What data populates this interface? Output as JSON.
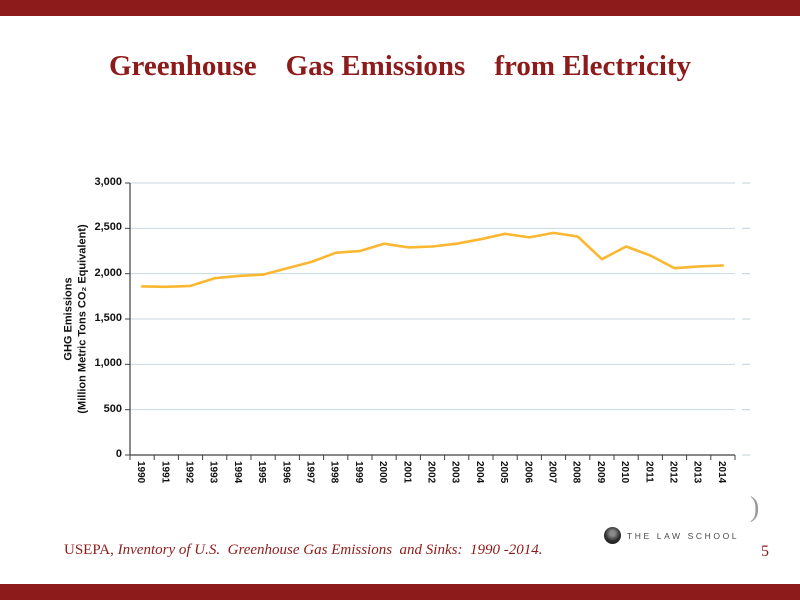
{
  "slide": {
    "title": "Greenhouse    Gas Emissions    from Electricity",
    "footer": {
      "prefix": "USEPA, ",
      "citation": "Inventory of U.S.  Greenhouse Gas Emissions  and Sinks:  1990 -2014."
    },
    "page_number": "5",
    "logo_text": "THE LAW SCHOOL",
    "edge_artifact": ")",
    "colors": {
      "accent_red": "#8E1B1B",
      "line": "#FBB731",
      "gridline": "#C7D7E2",
      "axis": "#404040"
    }
  },
  "chart_data": {
    "type": "line",
    "title": "",
    "xlabel": "",
    "ylabel": "GHG Emissions (Million Metric Tons CO₂ Equivalent)",
    "ylabel_lines": [
      "GHG Emissions",
      "(Million Metric Tons CO₂ Equivalent)"
    ],
    "x": [
      1990,
      1991,
      1992,
      1993,
      1994,
      1995,
      1996,
      1997,
      1998,
      1999,
      2000,
      2001,
      2002,
      2003,
      2004,
      2005,
      2006,
      2007,
      2008,
      2009,
      2010,
      2011,
      2012,
      2013,
      2014
    ],
    "series": [
      {
        "name": "GHG Emissions from Electricity",
        "values": [
          1860,
          1855,
          1865,
          1950,
          1975,
          1990,
          2060,
          2130,
          2230,
          2250,
          2330,
          2290,
          2300,
          2330,
          2380,
          2440,
          2400,
          2450,
          2410,
          2160,
          2300,
          2200,
          2060,
          2080,
          2090
        ]
      }
    ],
    "ylim": [
      0,
      3000
    ],
    "yticks": [
      0,
      500,
      1000,
      1500,
      2000,
      2500,
      3000
    ],
    "ytick_labels": [
      "0",
      "500",
      "1,000",
      "1,500",
      "2,000",
      "2,500",
      "3,000"
    ],
    "grid": true,
    "legend": false,
    "line_color": "#FBB731"
  }
}
